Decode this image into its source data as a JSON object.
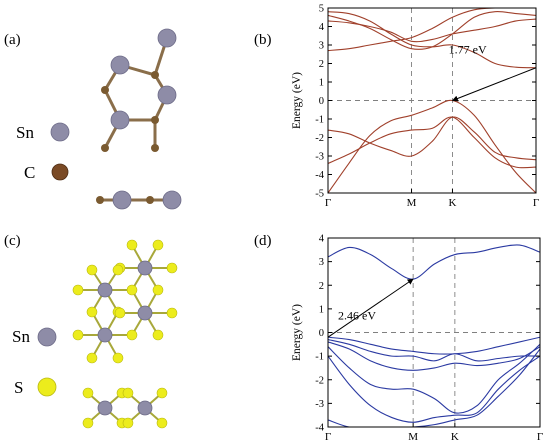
{
  "figure": {
    "panel_a": {
      "label": "(a)",
      "legend": [
        {
          "symbol": "Sn",
          "color": "#8e8ca7"
        },
        {
          "symbol": "C",
          "color": "#7a4a25"
        }
      ]
    },
    "panel_b": {
      "label": "(b)"
    },
    "panel_c": {
      "label": "(c)",
      "legend": [
        {
          "symbol": "Sn",
          "color": "#8e8ca7"
        },
        {
          "symbol": "S",
          "color": "#ecec1c"
        }
      ]
    },
    "panel_d": {
      "label": "(d)"
    }
  },
  "chart_data": [
    {
      "panel": "(b)",
      "type": "line",
      "title": "",
      "xlabel": "",
      "ylabel": "Energy (eV)",
      "ylim": [
        -5,
        5
      ],
      "yticks": [
        5,
        4,
        3,
        2,
        1,
        0,
        -1,
        -2,
        -3,
        -4,
        -5
      ],
      "kpoints": [
        {
          "label": "Γ",
          "x": 0
        },
        {
          "label": "M",
          "x": 1
        },
        {
          "label": "K",
          "x": 1.49
        },
        {
          "label": "Γ",
          "x": 2.49
        }
      ],
      "color": "#a0402b",
      "fermi_level": 0,
      "gap_annotation": {
        "text": "1.77 eV",
        "from": [
          1.49,
          0.0
        ],
        "to": [
          2.49,
          1.77
        ]
      },
      "series": [
        {
          "x": [
            0,
            0.25,
            0.5,
            0.75,
            1,
            1.25,
            1.49,
            1.75,
            2,
            2.25,
            2.49
          ],
          "values": [
            -5.0,
            -3.4,
            -1.9,
            -1.1,
            -0.8,
            -0.4,
            0.0,
            -0.8,
            -2.4,
            -3.9,
            -5.0
          ]
        },
        {
          "x": [
            0,
            0.25,
            0.5,
            0.75,
            1,
            1.25,
            1.49,
            1.75,
            2,
            2.25,
            2.49
          ],
          "values": [
            -1.6,
            -1.8,
            -2.3,
            -2.7,
            -3.0,
            -2.2,
            -0.9,
            -1.7,
            -2.8,
            -3.1,
            -3.2
          ]
        },
        {
          "x": [
            0,
            0.25,
            0.5,
            0.75,
            1,
            1.25,
            1.49,
            1.75,
            2,
            2.25,
            2.49
          ],
          "values": [
            -3.4,
            -2.9,
            -2.3,
            -1.8,
            -1.6,
            -1.5,
            -0.9,
            -2.0,
            -3.1,
            -3.6,
            -3.6
          ]
        },
        {
          "x": [
            0,
            0.25,
            0.5,
            0.75,
            1,
            1.25,
            1.49,
            1.75,
            2,
            2.25,
            2.49
          ],
          "values": [
            4.3,
            4.2,
            4.0,
            3.7,
            3.2,
            3.3,
            3.6,
            3.8,
            4.0,
            4.3,
            4.4
          ]
        },
        {
          "x": [
            0,
            0.25,
            0.5,
            0.75,
            1,
            1.25,
            1.49,
            1.75,
            2,
            2.25,
            2.49
          ],
          "values": [
            4.6,
            4.3,
            3.9,
            3.3,
            2.8,
            2.9,
            3.6,
            4.5,
            4.8,
            4.7,
            4.6
          ]
        },
        {
          "x": [
            0,
            0.25,
            0.5,
            0.75,
            1,
            1.25,
            1.49,
            1.75,
            2,
            2.25,
            2.49
          ],
          "values": [
            4.8,
            4.7,
            4.3,
            3.6,
            3.0,
            2.9,
            3.0,
            2.6,
            2.0,
            1.8,
            1.77
          ]
        },
        {
          "x": [
            0,
            0.25,
            0.5,
            0.75,
            1,
            1.25,
            1.49,
            1.75,
            2,
            2.25,
            2.49
          ],
          "values": [
            2.7,
            2.8,
            3.0,
            3.2,
            3.4,
            3.9,
            4.5,
            4.9,
            5.0,
            5.0,
            5.0
          ]
        }
      ]
    },
    {
      "panel": "(d)",
      "type": "line",
      "title": "",
      "xlabel": "",
      "ylabel": "Energy (eV)",
      "ylim": [
        -4,
        4
      ],
      "yticks": [
        4,
        3,
        2,
        1,
        0,
        -1,
        -2,
        -3,
        -4
      ],
      "kpoints": [
        {
          "label": "Γ",
          "x": 0
        },
        {
          "label": "M",
          "x": 1
        },
        {
          "label": "K",
          "x": 1.49
        },
        {
          "label": "Γ",
          "x": 2.49
        }
      ],
      "color": "#2b3aa2",
      "fermi_level": 0,
      "gap_annotation": {
        "text": "2.46 eV",
        "from": [
          0,
          -0.2
        ],
        "to": [
          1,
          2.26
        ]
      },
      "series": [
        {
          "x": [
            0,
            0.25,
            0.5,
            0.75,
            1,
            1.25,
            1.49,
            1.75,
            2,
            2.25,
            2.49
          ],
          "values": [
            3.2,
            3.6,
            3.3,
            2.7,
            2.26,
            2.9,
            3.3,
            3.4,
            3.6,
            3.7,
            3.4
          ]
        },
        {
          "x": [
            0,
            0.25,
            0.5,
            0.75,
            1,
            1.25,
            1.49,
            1.75,
            2,
            2.25,
            2.49
          ],
          "values": [
            -0.2,
            -0.3,
            -0.5,
            -0.7,
            -0.8,
            -0.9,
            -0.9,
            -0.8,
            -0.6,
            -0.4,
            -0.2
          ]
        },
        {
          "x": [
            0,
            0.25,
            0.5,
            0.75,
            1,
            1.25,
            1.49,
            1.75,
            2,
            2.25,
            2.49
          ],
          "values": [
            -0.3,
            -0.5,
            -0.8,
            -1.0,
            -1.0,
            -1.2,
            -0.9,
            -1.2,
            -1.1,
            -1.0,
            -1.0
          ]
        },
        {
          "x": [
            0,
            0.25,
            0.5,
            0.75,
            1,
            1.25,
            1.49,
            1.75,
            2,
            2.25,
            2.49
          ],
          "values": [
            -0.4,
            -0.7,
            -1.2,
            -1.5,
            -1.6,
            -1.5,
            -1.3,
            -1.4,
            -1.3,
            -1.1,
            -0.6
          ]
        },
        {
          "x": [
            0,
            0.25,
            0.5,
            0.75,
            1,
            1.25,
            1.49,
            1.75,
            2,
            2.25,
            2.49
          ],
          "values": [
            -0.6,
            -1.5,
            -2.2,
            -2.4,
            -2.4,
            -2.8,
            -3.4,
            -3.1,
            -2.0,
            -1.3,
            -0.5
          ]
        },
        {
          "x": [
            0,
            0.25,
            0.5,
            0.75,
            1,
            1.25,
            1.49,
            1.75,
            2,
            2.25,
            2.49
          ],
          "values": [
            -1.0,
            -2.2,
            -3.1,
            -3.6,
            -3.8,
            -3.6,
            -3.5,
            -3.4,
            -2.4,
            -1.6,
            -1.0
          ]
        },
        {
          "x": [
            0,
            0.25,
            0.5,
            0.75,
            1,
            1.25,
            1.49,
            1.75,
            2,
            2.25,
            2.49
          ],
          "values": [
            -3.7,
            -4.0,
            -4.0,
            -4.0,
            -4.0,
            -3.9,
            -3.7,
            -3.5,
            -2.7,
            -1.8,
            -0.7
          ]
        }
      ]
    }
  ]
}
